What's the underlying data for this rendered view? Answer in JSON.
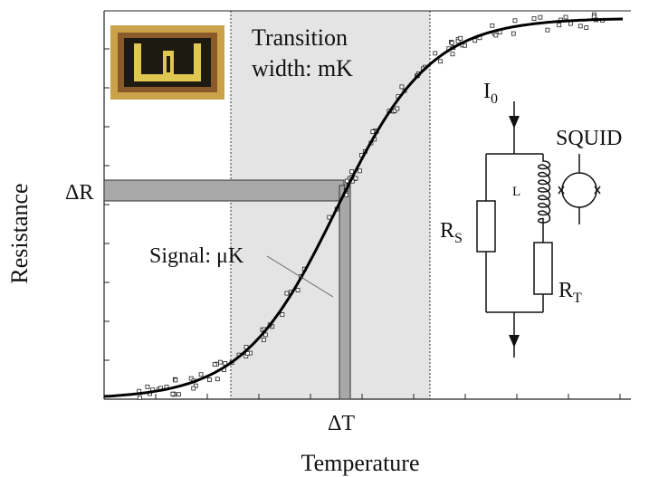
{
  "y_axis_label": "Resistance",
  "x_axis_label": "Temperature",
  "transition_label": [
    "Transition",
    "width:  mK"
  ],
  "signal_label": "Signal: μK",
  "delta_r": "ΔR",
  "delta_t": "ΔT",
  "circuit": {
    "current": {
      "main": "I",
      "sub": "0"
    },
    "squid": "SQUID",
    "inductor": "L",
    "shunt": {
      "main": "R",
      "sub": "S"
    },
    "sensor": {
      "main": "R",
      "sub": "T"
    }
  }
}
